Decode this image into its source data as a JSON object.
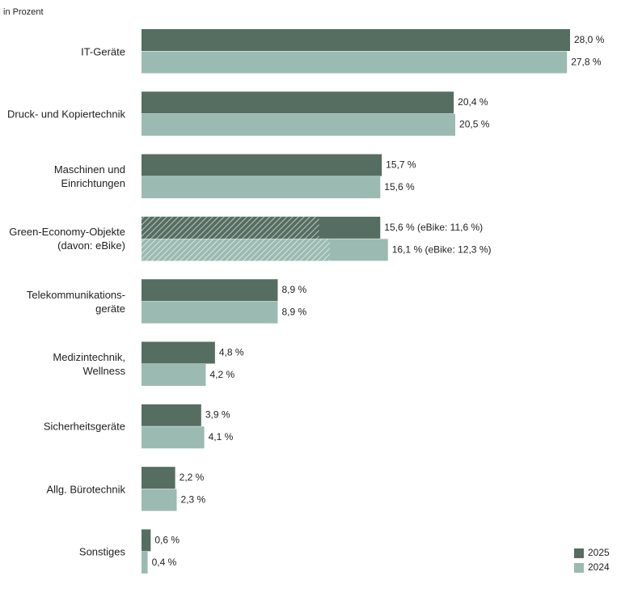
{
  "chart_data": {
    "type": "bar",
    "orientation": "horizontal",
    "subtitle": "in Prozent",
    "categories": [
      "IT-Geräte",
      "Druck- und Kopiertechnik",
      "Maschinen und\nEinrichtungen",
      "Green-Economy-Objekte\n(davon: eBike)",
      "Telekommunikations-\ngeräte",
      "Medizintechnik,\nWellness",
      "Sicherheitsgeräte",
      "Allg. Bürotechnik",
      "Sonstiges"
    ],
    "series": [
      {
        "name": "2025",
        "color": "#566e62",
        "values": [
          28.0,
          20.4,
          15.7,
          15.6,
          8.9,
          4.8,
          3.9,
          2.2,
          0.6
        ],
        "value_labels": [
          "28,0 %",
          "20,4 %",
          "15,7 %",
          "15,6 % (eBike: 11,6 %)",
          "8,9 %",
          "4,8 %",
          "3,9 %",
          "2,2 %",
          "0,6 %"
        ],
        "hatched_values": [
          null,
          null,
          null,
          11.6,
          null,
          null,
          null,
          null,
          null
        ]
      },
      {
        "name": "2024",
        "color": "#9bbab2",
        "values": [
          27.8,
          20.5,
          15.6,
          16.1,
          8.9,
          4.2,
          4.1,
          2.3,
          0.4
        ],
        "value_labels": [
          "27,8 %",
          "20,5 %",
          "15,6 %",
          "16,1 % (eBike: 12,3 %)",
          "8,9 %",
          "4,2 %",
          "4,1 %",
          "2,3 %",
          "0,4 %"
        ],
        "hatched_values": [
          null,
          null,
          null,
          12.3,
          null,
          null,
          null,
          null,
          null
        ]
      }
    ]
  }
}
